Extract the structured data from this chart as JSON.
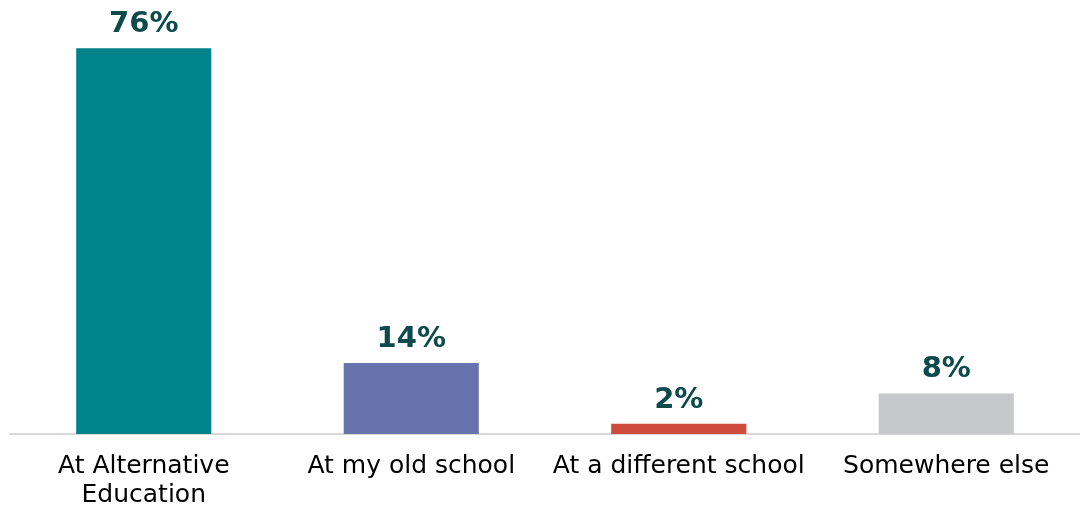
{
  "chart_data": {
    "type": "bar",
    "categories": [
      "At Alternative Education",
      "At my old school",
      "At a different school",
      "Somewhere else"
    ],
    "values": [
      76,
      14,
      2,
      8
    ],
    "colors": [
      "#00838a",
      "#6873ae",
      "#cf4b3b",
      "#c7c8ca"
    ],
    "value_labels": [
      "76%",
      "14%",
      "2%",
      "8%"
    ]
  }
}
